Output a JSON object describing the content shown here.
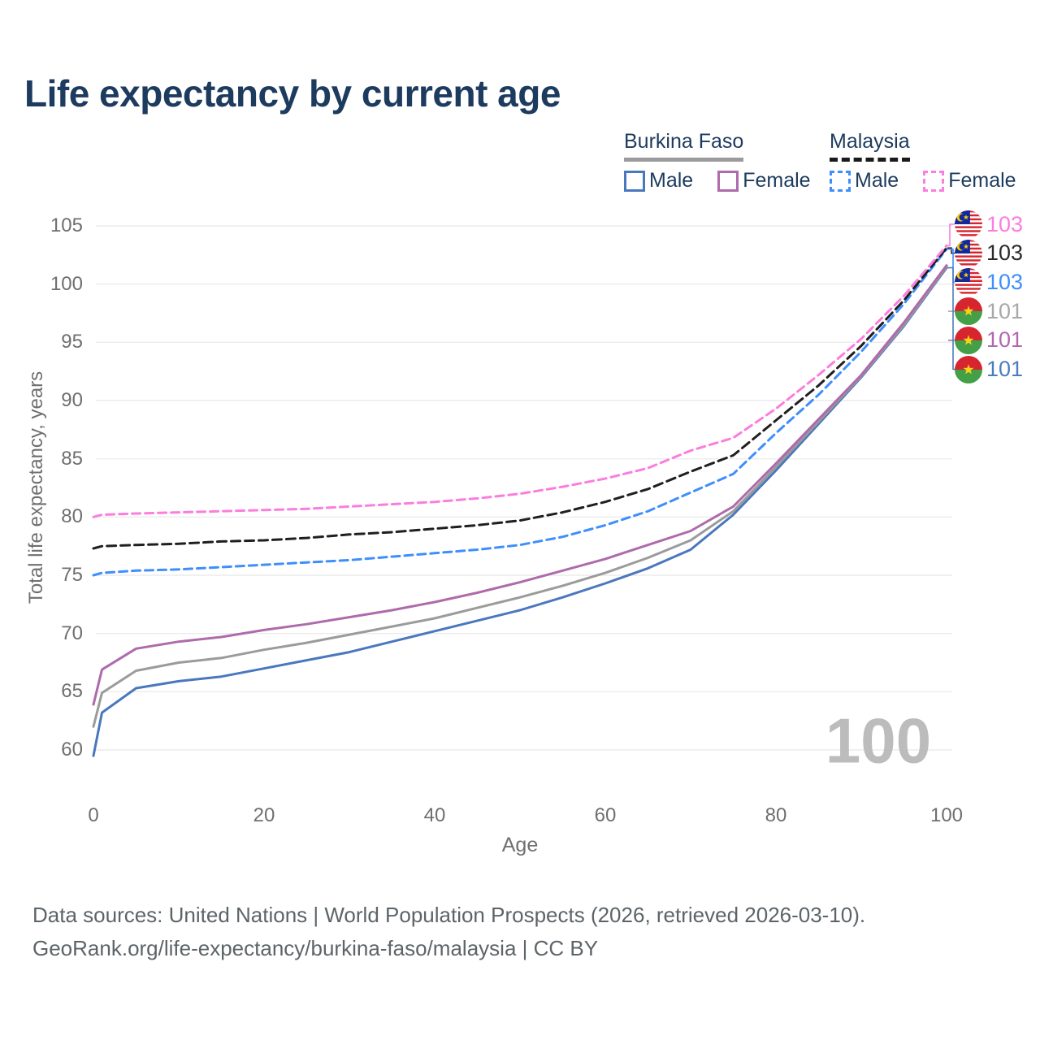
{
  "title": "Life expectancy by current age",
  "watermark": "100",
  "legend": {
    "groups": [
      {
        "name": "Burkina Faso",
        "line_style": "solid",
        "underline_color": "#9b9b9b",
        "items": [
          {
            "label": "Male",
            "color": "#4a77bd"
          },
          {
            "label": "Female",
            "color": "#ae6bab"
          }
        ]
      },
      {
        "name": "Malaysia",
        "line_style": "dashed",
        "underline_color": "#1a1a1a",
        "items": [
          {
            "label": "Male",
            "color": "#3e8efd"
          },
          {
            "label": "Female",
            "color": "#fb7dde"
          }
        ]
      }
    ]
  },
  "chart_data": {
    "type": "line",
    "title": "Life expectancy by current age",
    "xlabel": "Age",
    "ylabel": "Total life expectancy, years",
    "xlim": [
      0,
      100
    ],
    "ylim": [
      58,
      106
    ],
    "xticks": [
      0,
      20,
      40,
      60,
      80,
      100
    ],
    "yticks": [
      60,
      65,
      70,
      75,
      80,
      85,
      90,
      95,
      100,
      105
    ],
    "grid": "horizontal",
    "legend_position": "top-right",
    "ages": [
      0,
      1,
      5,
      10,
      15,
      20,
      25,
      30,
      35,
      40,
      45,
      50,
      55,
      60,
      65,
      70,
      75,
      80,
      85,
      90,
      95,
      100
    ],
    "series": [
      {
        "id": "burkina-faso-male",
        "country": "Burkina Faso",
        "sex": "Male",
        "color": "#4a77bd",
        "dash": null,
        "end_value": 101,
        "values": [
          59.5,
          63.2,
          65.3,
          65.9,
          66.3,
          67.0,
          67.7,
          68.4,
          69.3,
          70.2,
          71.1,
          72.0,
          73.1,
          74.3,
          75.6,
          77.2,
          80.2,
          84.0,
          88.0,
          92.0,
          96.4,
          101.4
        ]
      },
      {
        "id": "burkina-faso-both",
        "country": "Burkina Faso",
        "sex": "Both",
        "color": "#9b9b9b",
        "dash": null,
        "end_value": 101,
        "values": [
          62.0,
          64.9,
          66.8,
          67.5,
          67.9,
          68.6,
          69.2,
          69.9,
          70.6,
          71.3,
          72.2,
          73.1,
          74.1,
          75.2,
          76.5,
          78.0,
          80.5,
          84.3,
          88.2,
          92.1,
          96.5,
          101.5
        ]
      },
      {
        "id": "burkina-faso-female",
        "country": "Burkina Faso",
        "sex": "Female",
        "color": "#ae6bab",
        "dash": null,
        "end_value": 101,
        "values": [
          63.9,
          66.9,
          68.7,
          69.3,
          69.7,
          70.3,
          70.8,
          71.4,
          72.0,
          72.7,
          73.5,
          74.4,
          75.4,
          76.4,
          77.6,
          78.8,
          80.9,
          84.6,
          88.4,
          92.2,
          96.7,
          101.6
        ]
      },
      {
        "id": "malaysia-male",
        "country": "Malaysia",
        "sex": "Male",
        "color": "#3e8efd",
        "dash": "10 6",
        "end_value": 103,
        "values": [
          75.0,
          75.2,
          75.4,
          75.5,
          75.7,
          75.9,
          76.1,
          76.3,
          76.6,
          76.9,
          77.2,
          77.6,
          78.3,
          79.3,
          80.5,
          82.1,
          83.7,
          87.2,
          90.5,
          94.2,
          98.3,
          103.0
        ]
      },
      {
        "id": "malaysia-both",
        "country": "Malaysia",
        "sex": "Both",
        "color": "#1f1f1f",
        "dash": "11 6",
        "end_value": 103,
        "values": [
          77.3,
          77.5,
          77.6,
          77.7,
          77.9,
          78.0,
          78.2,
          78.5,
          78.7,
          79.0,
          79.3,
          79.7,
          80.4,
          81.3,
          82.4,
          83.9,
          85.3,
          88.3,
          91.3,
          94.7,
          98.6,
          103.1
        ]
      },
      {
        "id": "malaysia-female",
        "country": "Malaysia",
        "sex": "Female",
        "color": "#fb7dde",
        "dash": "10 6",
        "end_value": 103,
        "values": [
          80.0,
          80.2,
          80.3,
          80.4,
          80.5,
          80.6,
          80.7,
          80.9,
          81.1,
          81.3,
          81.6,
          82.0,
          82.6,
          83.3,
          84.2,
          85.7,
          86.8,
          89.3,
          92.2,
          95.3,
          99.0,
          103.3
        ]
      }
    ]
  },
  "right_labels": [
    {
      "flag": "malaysia",
      "value": "103",
      "color": "#fb7dde",
      "series": "malaysia-female",
      "connector": "elbow"
    },
    {
      "flag": "malaysia",
      "value": "103",
      "color": "#2b2b2b",
      "series": "malaysia-both",
      "connector": "elbow"
    },
    {
      "flag": "malaysia",
      "value": "103",
      "color": "#3e8efd",
      "series": "malaysia-male",
      "connector": "elbow"
    },
    {
      "flag": "burkina-faso",
      "value": "101",
      "color": "#a8a8a8",
      "series": "burkina-faso-both",
      "connector": "tick"
    },
    {
      "flag": "burkina-faso",
      "value": "101",
      "color": "#b168ae",
      "series": "burkina-faso-female",
      "connector": "tick"
    },
    {
      "flag": "burkina-faso",
      "value": "101",
      "color": "#4a7dc0",
      "series": "burkina-faso-male",
      "connector": "elbow"
    }
  ],
  "footer": {
    "line1": "Data sources: United Nations | World Population Prospects (2026, retrieved 2026-03-10).",
    "line2": "GeoRank.org/life-expectancy/burkina-faso/malaysia | CC BY"
  }
}
